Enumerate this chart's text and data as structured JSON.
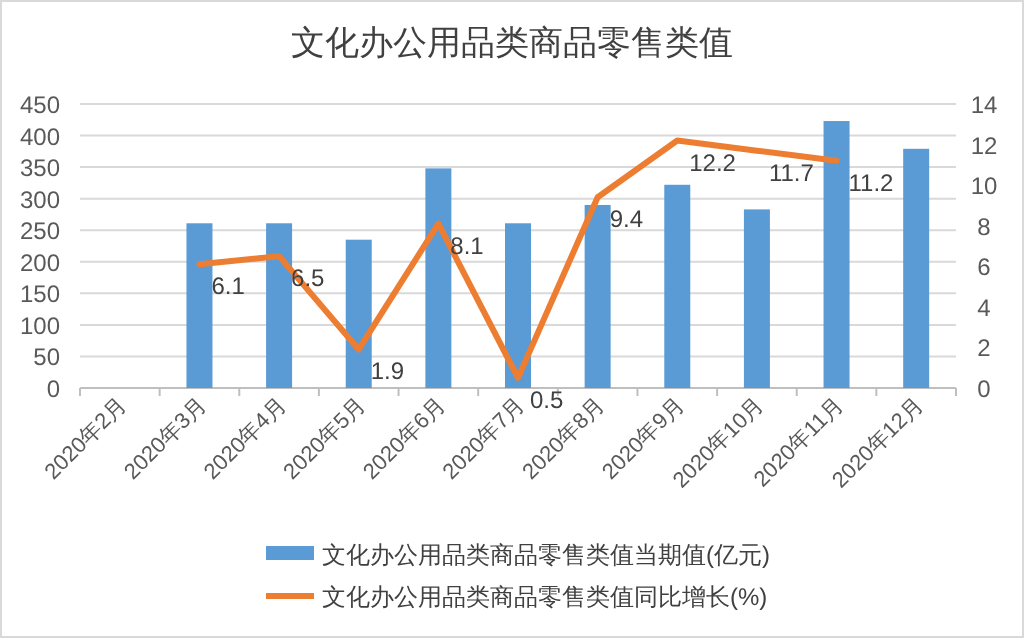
{
  "chart_data": {
    "type": "bar",
    "title": "文化办公用品类商品零售类值",
    "categories": [
      "2020年2月",
      "2020年3月",
      "2020年4月",
      "2020年5月",
      "2020年6月",
      "2020年7月",
      "2020年8月",
      "2020年9月",
      "2020年10月",
      "2020年11月",
      "2020年12月"
    ],
    "series": [
      {
        "name": "文化办公用品类商品零售类值当期值(亿元)",
        "color": "#5b9bd5",
        "values": [
          null,
          261,
          261,
          235,
          348,
          261,
          290,
          322,
          283,
          423,
          379
        ]
      },
      {
        "name": "文化办公用品类商品零售类值同比增长(%)",
        "type": "line",
        "axis": "y2",
        "color": "#ed7d31",
        "values": [
          null,
          6.1,
          6.5,
          1.9,
          8.1,
          0.5,
          9.4,
          12.2,
          11.7,
          11.2,
          null
        ],
        "value_labels": [
          null,
          "6.1",
          "6.5",
          "1.9",
          "8.1",
          "0.5",
          "9.4",
          "12.2",
          "11.7",
          "11.2",
          null
        ]
      }
    ],
    "ylim": [
      0,
      450
    ],
    "yticks": [
      0,
      50,
      100,
      150,
      200,
      250,
      300,
      350,
      400,
      450
    ],
    "y2lim": [
      0,
      14
    ],
    "y2ticks": [
      0,
      2,
      4,
      6,
      8,
      10,
      12,
      14
    ],
    "grid": "y",
    "legend": "bottom"
  }
}
